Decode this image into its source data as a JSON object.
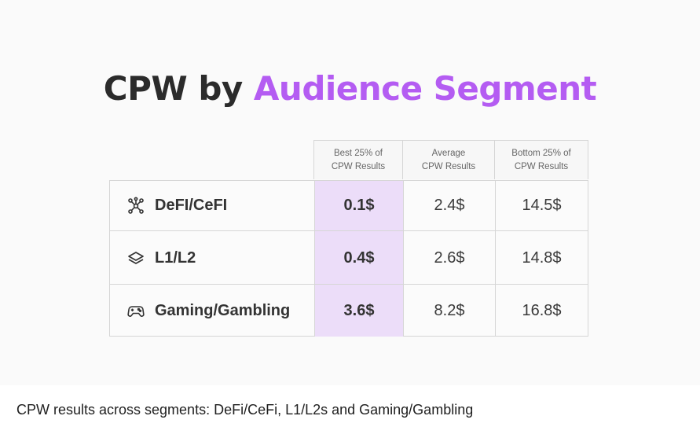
{
  "title": {
    "main": "CPW by ",
    "accent": "Audience Segment"
  },
  "table": {
    "headers": [
      {
        "line1": "Best 25% of",
        "line2": "CPW Results"
      },
      {
        "line1": "Average",
        "line2": "CPW Results"
      },
      {
        "line1": "Bottom 25% of",
        "line2": "CPW Results"
      }
    ],
    "rows": [
      {
        "icon": "network-icon",
        "label": "DeFI/CeFI",
        "best": "0.1$",
        "average": "2.4$",
        "bottom": "14.5$"
      },
      {
        "icon": "layers-icon",
        "label": "L1/L2",
        "best": "0.4$",
        "average": "2.6$",
        "bottom": "14.8$"
      },
      {
        "icon": "gamepad-icon",
        "label": "Gaming/Gambling",
        "best": "3.6$",
        "average": "8.2$",
        "bottom": "16.8$"
      }
    ]
  },
  "caption": "CPW results across segments: DeFi/CeFi, L1/L2s and Gaming/Gambling",
  "colors": {
    "accent": "#b45cf2",
    "highlight": "#ecddf9"
  }
}
